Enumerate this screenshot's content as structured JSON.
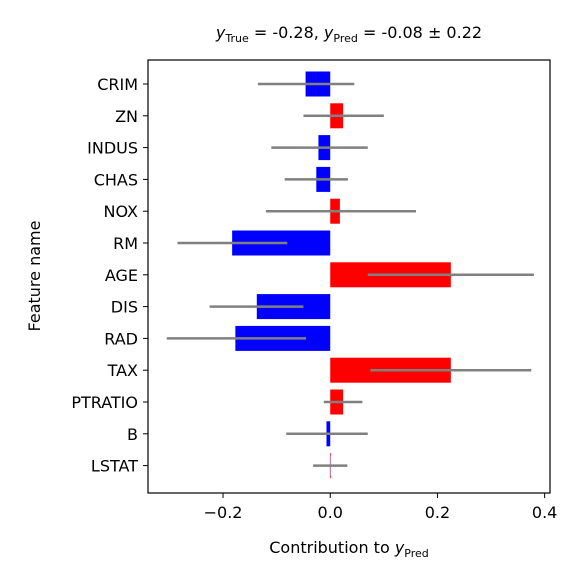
{
  "chart_data": {
    "type": "bar",
    "orientation": "horizontal",
    "title": {
      "y_true_label": "True",
      "y_true_value": "-0.28",
      "y_pred_label": "Pred",
      "y_pred_value": "-0.08",
      "y_pred_uncertainty": "0.22"
    },
    "xlabel": "Contribution to",
    "xlabel_subscript": "Pred",
    "ylabel": "Feature name",
    "xlim": [
      -0.34,
      0.41
    ],
    "xticks": [
      -0.2,
      0.0,
      0.2,
      0.4
    ],
    "xtick_labels": [
      "−0.2",
      "0.0",
      "0.2",
      "0.4"
    ],
    "categories": [
      "CRIM",
      "ZN",
      "INDUS",
      "CHAS",
      "NOX",
      "RM",
      "AGE",
      "DIS",
      "RAD",
      "TAX",
      "PTRATIO",
      "B",
      "LSTAT"
    ],
    "values": [
      -0.046,
      0.024,
      -0.022,
      -0.026,
      0.018,
      -0.183,
      0.225,
      -0.137,
      -0.177,
      0.225,
      0.024,
      -0.007,
      0.0
    ],
    "error_low": [
      -0.135,
      -0.05,
      -0.11,
      -0.085,
      -0.12,
      -0.285,
      0.07,
      -0.225,
      -0.305,
      0.075,
      -0.012,
      -0.082,
      -0.032
    ],
    "error_high": [
      0.045,
      0.1,
      0.07,
      0.033,
      0.16,
      -0.08,
      0.38,
      -0.05,
      -0.045,
      0.375,
      0.06,
      0.07,
      0.032
    ],
    "positive_color": "#ff0000",
    "negative_color": "#0000ff",
    "error_color": "#808080",
    "grid": false,
    "legend": "none"
  }
}
